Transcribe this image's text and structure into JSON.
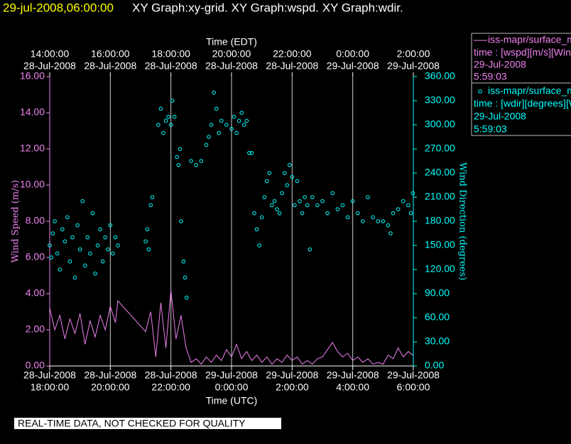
{
  "chart_data": {
    "type": "xy-graph",
    "timestamp": "29-jul-2008,06:00:00",
    "title": "XY Graph:xy-grid.  XY Graph:wspd.  XY Graph:wdir.",
    "xlabel": "Time (UTC)",
    "x2label": "Time (EDT)",
    "ylabel": "Wind Speed (m/s)",
    "y2label": "Wind Direction (degrees)",
    "footer": "REAL-TIME DATA, NOT CHECKED FOR QUALITY",
    "grid": true,
    "xlim": [
      "2008-07-28T18:00:00",
      "2008-07-29T06:00:00"
    ],
    "xticks": [
      {
        "value": "2008-07-28T18:00:00",
        "label": [
          "28-Jul-2008",
          "18:00:00"
        ]
      },
      {
        "value": "2008-07-28T20:00:00",
        "label": [
          "28-Jul-2008",
          "20:00:00"
        ]
      },
      {
        "value": "2008-07-28T22:00:00",
        "label": [
          "28-Jul-2008",
          "22:00:00"
        ]
      },
      {
        "value": "2008-07-29T00:00:00",
        "label": [
          "29-Jul-2008",
          "0:00:00"
        ]
      },
      {
        "value": "2008-07-29T02:00:00",
        "label": [
          "29-Jul-2008",
          "2:00:00"
        ]
      },
      {
        "value": "2008-07-29T04:00:00",
        "label": [
          "29-Jul-2008",
          "4:00:00"
        ]
      },
      {
        "value": "2008-07-29T06:00:00",
        "label": [
          "29-Jul-2008",
          "6:00:00"
        ]
      }
    ],
    "x2ticks": [
      {
        "value": "2008-07-28T18:00:00",
        "label": [
          "14:00:00",
          "28-Jul-2008"
        ]
      },
      {
        "value": "2008-07-28T20:00:00",
        "label": [
          "16:00:00",
          "28-Jul-2008"
        ]
      },
      {
        "value": "2008-07-28T22:00:00",
        "label": [
          "18:00:00",
          "28-Jul-2008"
        ]
      },
      {
        "value": "2008-07-29T00:00:00",
        "label": [
          "20:00:00",
          "28-Jul-2008"
        ]
      },
      {
        "value": "2008-07-29T02:00:00",
        "label": [
          "22:00:00",
          "28-Jul-2008"
        ]
      },
      {
        "value": "2008-07-29T04:00:00",
        "label": [
          "0:00:00",
          "29-Jul-2008"
        ]
      },
      {
        "value": "2008-07-29T06:00:00",
        "label": [
          "2:00:00",
          "29-Jul-2008"
        ]
      }
    ],
    "ylim": [
      0,
      16
    ],
    "yticks": [
      {
        "value": 0,
        "label": "0.00"
      },
      {
        "value": 2,
        "label": "2.00"
      },
      {
        "value": 4,
        "label": "4.00"
      },
      {
        "value": 6,
        "label": "6.00"
      },
      {
        "value": 8,
        "label": "8.00"
      },
      {
        "value": 10,
        "label": "10.00"
      },
      {
        "value": 12,
        "label": "12.00"
      },
      {
        "value": 14,
        "label": "14.00"
      },
      {
        "value": 16,
        "label": "16.00"
      }
    ],
    "y2lim": [
      0,
      360
    ],
    "y2ticks": [
      {
        "value": 0,
        "label": "0.00"
      },
      {
        "value": 30,
        "label": "30.00"
      },
      {
        "value": 60,
        "label": "60.00"
      },
      {
        "value": 90,
        "label": "90.00"
      },
      {
        "value": 120,
        "label": "120.00"
      },
      {
        "value": 150,
        "label": "150.00"
      },
      {
        "value": 180,
        "label": "180.00"
      },
      {
        "value": 210,
        "label": "210.00"
      },
      {
        "value": 240,
        "label": "240.00"
      },
      {
        "value": 270,
        "label": "270.00"
      },
      {
        "value": 300,
        "label": "300.00"
      },
      {
        "value": 330,
        "label": "330.00"
      },
      {
        "value": 360,
        "label": "360.00"
      }
    ],
    "series": [
      {
        "name": "iss-mapr/surface_m",
        "detail": "time : [wspd][m/s][Wind",
        "date": "29-Jul-2008",
        "time": "5:59:03",
        "style": "line",
        "color": "#ee82ee",
        "x": [
          "2008-07-28T18:00:00",
          "2008-07-28T18:10:00",
          "2008-07-28T18:20:00",
          "2008-07-28T18:30:00",
          "2008-07-28T18:40:00",
          "2008-07-28T18:50:00",
          "2008-07-28T19:00:00",
          "2008-07-28T19:10:00",
          "2008-07-28T19:20:00",
          "2008-07-28T19:30:00",
          "2008-07-28T19:40:00",
          "2008-07-28T19:50:00",
          "2008-07-28T20:00:00",
          "2008-07-28T20:10:00",
          "2008-07-28T20:15:00",
          "2008-07-28T21:10:00",
          "2008-07-28T21:20:00",
          "2008-07-28T21:30:00",
          "2008-07-28T21:40:00",
          "2008-07-28T21:50:00",
          "2008-07-28T22:00:00",
          "2008-07-28T22:10:00",
          "2008-07-28T22:20:00",
          "2008-07-28T22:30:00",
          "2008-07-28T22:40:00",
          "2008-07-28T22:50:00",
          "2008-07-28T23:00:00",
          "2008-07-28T23:10:00",
          "2008-07-28T23:20:00",
          "2008-07-28T23:30:00",
          "2008-07-28T23:40:00",
          "2008-07-28T23:50:00",
          "2008-07-29T00:00:00",
          "2008-07-29T00:10:00",
          "2008-07-29T00:20:00",
          "2008-07-29T00:30:00",
          "2008-07-29T00:40:00",
          "2008-07-29T00:50:00",
          "2008-07-29T01:00:00",
          "2008-07-29T01:10:00",
          "2008-07-29T01:20:00",
          "2008-07-29T01:30:00",
          "2008-07-29T01:40:00",
          "2008-07-29T01:50:00",
          "2008-07-29T02:00:00",
          "2008-07-29T02:10:00",
          "2008-07-29T02:20:00",
          "2008-07-29T02:30:00",
          "2008-07-29T02:40:00",
          "2008-07-29T02:50:00",
          "2008-07-29T03:00:00",
          "2008-07-29T03:10:00",
          "2008-07-29T03:20:00",
          "2008-07-29T03:30:00",
          "2008-07-29T03:40:00",
          "2008-07-29T03:50:00",
          "2008-07-29T04:00:00",
          "2008-07-29T04:10:00",
          "2008-07-29T04:20:00",
          "2008-07-29T04:30:00",
          "2008-07-29T04:40:00",
          "2008-07-29T04:50:00",
          "2008-07-29T05:00:00",
          "2008-07-29T05:10:00",
          "2008-07-29T05:20:00",
          "2008-07-29T05:30:00",
          "2008-07-29T05:40:00",
          "2008-07-29T05:50:00",
          "2008-07-29T05:59:00"
        ],
        "values": [
          3.2,
          2.0,
          2.8,
          1.5,
          2.6,
          1.8,
          2.9,
          1.2,
          2.5,
          1.6,
          2.8,
          2.0,
          3.3,
          2.4,
          3.6,
          1.9,
          3.0,
          0.5,
          3.5,
          1.0,
          4.2,
          1.5,
          2.8,
          1.0,
          0.2,
          0.4,
          0.1,
          0.5,
          0.2,
          0.6,
          0.3,
          0.9,
          0.5,
          1.2,
          0.4,
          0.8,
          0.3,
          0.6,
          0.2,
          0.5,
          0.1,
          0.4,
          0.2,
          0.6,
          0.3,
          0.5,
          0.1,
          0.3,
          0.1,
          0.4,
          0.5,
          0.9,
          1.3,
          0.8,
          0.5,
          0.7,
          0.3,
          0.5,
          0.2,
          0.4,
          0.1,
          0.2,
          0.1,
          0.6,
          0.4,
          1.0,
          0.5,
          0.8,
          0.6
        ]
      },
      {
        "name": "iss-mapr/surface_m",
        "detail": "time : [wdir][degrees][W",
        "date": "29-Jul-2008",
        "time": "5:59:03",
        "style": "scatter",
        "color": "#00ffff",
        "axis": "y2",
        "x": [
          "2008-07-28T18:00:00",
          "2008-07-28T18:03:00",
          "2008-07-28T18:06:00",
          "2008-07-28T18:10:00",
          "2008-07-28T18:15:00",
          "2008-07-28T18:20:00",
          "2008-07-28T18:25:00",
          "2008-07-28T18:30:00",
          "2008-07-28T18:35:00",
          "2008-07-28T18:40:00",
          "2008-07-28T18:45:00",
          "2008-07-28T18:50:00",
          "2008-07-28T18:55:00",
          "2008-07-28T19:00:00",
          "2008-07-28T19:05:00",
          "2008-07-28T19:10:00",
          "2008-07-28T19:15:00",
          "2008-07-28T19:20:00",
          "2008-07-28T19:25:00",
          "2008-07-28T19:30:00",
          "2008-07-28T19:35:00",
          "2008-07-28T19:40:00",
          "2008-07-28T19:45:00",
          "2008-07-28T19:50:00",
          "2008-07-28T19:55:00",
          "2008-07-28T20:00:00",
          "2008-07-28T20:05:00",
          "2008-07-28T20:10:00",
          "2008-07-28T20:15:00",
          "2008-07-28T21:10:00",
          "2008-07-28T21:13:00",
          "2008-07-28T21:16:00",
          "2008-07-28T21:20:00",
          "2008-07-28T21:23:00",
          "2008-07-28T21:35:00",
          "2008-07-28T21:40:00",
          "2008-07-28T21:45:00",
          "2008-07-28T21:50:00",
          "2008-07-28T21:55:00",
          "2008-07-28T22:00:00",
          "2008-07-28T22:03:00",
          "2008-07-28T22:07:00",
          "2008-07-28T22:12:00",
          "2008-07-28T22:15:00",
          "2008-07-28T22:18:00",
          "2008-07-28T22:20:00",
          "2008-07-28T22:25:00",
          "2008-07-28T22:28:00",
          "2008-07-28T22:31:00",
          "2008-07-28T22:40:00",
          "2008-07-28T22:50:00",
          "2008-07-28T23:00:00",
          "2008-07-28T23:10:00",
          "2008-07-28T23:15:00",
          "2008-07-28T23:20:00",
          "2008-07-28T23:25:00",
          "2008-07-28T23:30:00",
          "2008-07-28T23:35:00",
          "2008-07-28T23:40:00",
          "2008-07-28T23:50:00",
          "2008-07-29T00:00:00",
          "2008-07-29T00:05:00",
          "2008-07-29T00:10:00",
          "2008-07-29T00:15:00",
          "2008-07-29T00:20:00",
          "2008-07-29T00:25:00",
          "2008-07-29T00:30:00",
          "2008-07-29T00:35:00",
          "2008-07-29T00:40:00",
          "2008-07-29T00:45:00",
          "2008-07-29T00:50:00",
          "2008-07-29T00:55:00",
          "2008-07-29T01:00:00",
          "2008-07-29T01:05:00",
          "2008-07-29T01:10:00",
          "2008-07-29T01:15:00",
          "2008-07-29T01:20:00",
          "2008-07-29T01:25:00",
          "2008-07-29T01:30:00",
          "2008-07-29T01:35:00",
          "2008-07-29T01:40:00",
          "2008-07-29T01:45:00",
          "2008-07-29T01:50:00",
          "2008-07-29T01:55:00",
          "2008-07-29T02:00:00",
          "2008-07-29T02:05:00",
          "2008-07-29T02:10:00",
          "2008-07-29T02:15:00",
          "2008-07-29T02:20:00",
          "2008-07-29T02:25:00",
          "2008-07-29T02:30:00",
          "2008-07-29T02:35:00",
          "2008-07-29T02:40:00",
          "2008-07-29T02:50:00",
          "2008-07-29T03:00:00",
          "2008-07-29T03:10:00",
          "2008-07-29T03:20:00",
          "2008-07-29T03:30:00",
          "2008-07-29T03:40:00",
          "2008-07-29T03:50:00",
          "2008-07-29T04:00:00",
          "2008-07-29T04:10:00",
          "2008-07-29T04:20:00",
          "2008-07-29T04:30:00",
          "2008-07-29T04:40:00",
          "2008-07-29T04:50:00",
          "2008-07-29T05:00:00",
          "2008-07-29T05:10:00",
          "2008-07-29T05:15:00",
          "2008-07-29T05:20:00",
          "2008-07-29T05:30:00",
          "2008-07-29T05:40:00",
          "2008-07-29T05:50:00",
          "2008-07-29T05:55:00",
          "2008-07-29T05:59:00"
        ],
        "values": [
          150,
          135,
          165,
          180,
          140,
          120,
          170,
          155,
          185,
          130,
          160,
          110,
          175,
          145,
          205,
          125,
          160,
          140,
          190,
          115,
          150,
          170,
          130,
          160,
          145,
          175,
          140,
          160,
          150,
          155,
          170,
          145,
          200,
          210,
          300,
          320,
          290,
          305,
          310,
          300,
          330,
          310,
          260,
          250,
          270,
          180,
          130,
          110,
          85,
          255,
          250,
          255,
          275,
          285,
          300,
          340,
          320,
          290,
          305,
          300,
          295,
          310,
          290,
          305,
          315,
          300,
          305,
          265,
          265,
          190,
          170,
          150,
          185,
          210,
          230,
          240,
          200,
          205,
          195,
          190,
          215,
          240,
          225,
          250,
          235,
          200,
          230,
          205,
          190,
          210,
          200,
          145,
          210,
          200,
          205,
          190,
          215,
          195,
          200,
          185,
          205,
          190,
          180,
          210,
          185,
          180,
          180,
          175,
          165,
          190,
          195,
          205,
          200,
          190,
          215
        ]
      }
    ]
  }
}
